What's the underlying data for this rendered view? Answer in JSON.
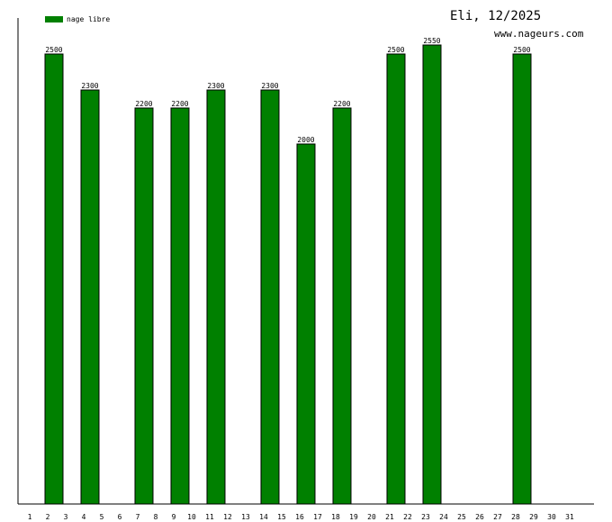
{
  "title": "Eli, 12/2025",
  "subtitle": "www.nageurs.com",
  "legend": {
    "label": "nage libre",
    "color": "#008000"
  },
  "chart_data": {
    "type": "bar",
    "title": "Eli, 12/2025",
    "categories": [
      "1",
      "2",
      "3",
      "4",
      "5",
      "6",
      "7",
      "8",
      "9",
      "10",
      "11",
      "12",
      "13",
      "14",
      "15",
      "16",
      "17",
      "18",
      "19",
      "20",
      "21",
      "22",
      "23",
      "24",
      "25",
      "26",
      "27",
      "28",
      "29",
      "30",
      "31"
    ],
    "series": [
      {
        "name": "nage libre",
        "color": "#008000",
        "values": [
          null,
          2500,
          null,
          2300,
          null,
          null,
          2200,
          null,
          2200,
          null,
          2300,
          null,
          null,
          2300,
          null,
          2000,
          null,
          2200,
          null,
          null,
          2500,
          null,
          2550,
          null,
          null,
          null,
          null,
          2500,
          null,
          null,
          null
        ]
      }
    ],
    "ylim": [
      0,
      2700
    ],
    "legend_position": "top-left",
    "grid": false
  }
}
